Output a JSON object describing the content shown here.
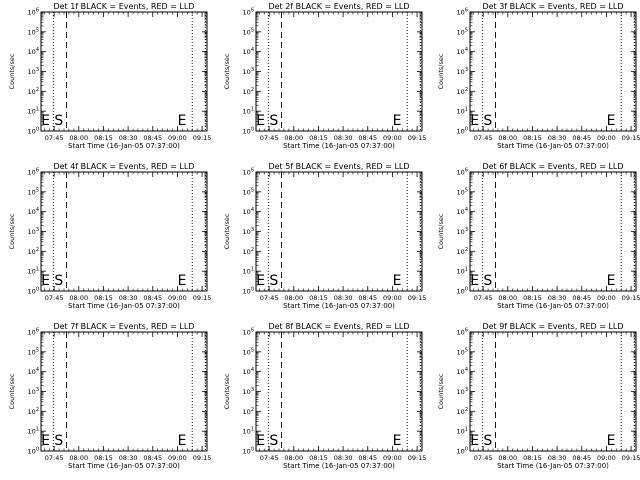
{
  "chart_data": {
    "type": "line",
    "layout": "3x3",
    "ylabel": "Counts/sec",
    "xlabel": "Start Time (16-Jan-05 07:37:00)",
    "x_tick_labels": [
      "07:45",
      "08:00",
      "08:15",
      "08:30",
      "08:45",
      "09:00",
      "09:15"
    ],
    "x_tick_minutes": [
      45,
      60,
      75,
      90,
      105,
      120,
      135
    ],
    "xlim_minutes": [
      37,
      138
    ],
    "y_scale": "log",
    "ylim": [
      1,
      1000000
    ],
    "y_tick_exponents": [
      0,
      1,
      2,
      3,
      4,
      5,
      6
    ],
    "markers": [
      {
        "label": "E",
        "x_minute": 38
      },
      {
        "label": "S",
        "x_minute": 46
      },
      {
        "label": "E",
        "x_minute": 121
      }
    ],
    "vlines": [
      {
        "style": "dotted",
        "x_minute": 44.5
      },
      {
        "style": "dashed",
        "x_minute": 52.5
      },
      {
        "style": "dotted",
        "x_minute": 129
      },
      {
        "style": "dotted",
        "x_minute": 137
      }
    ],
    "panels": [
      {
        "title": "Det 1f BLACK = Events, RED = LLD",
        "series": []
      },
      {
        "title": "Det 2f BLACK = Events, RED = LLD",
        "series": []
      },
      {
        "title": "Det 3f BLACK = Events, RED = LLD",
        "series": []
      },
      {
        "title": "Det 4f BLACK = Events, RED = LLD",
        "series": []
      },
      {
        "title": "Det 5f BLACK = Events, RED = LLD",
        "series": []
      },
      {
        "title": "Det 6f BLACK = Events, RED = LLD",
        "series": []
      },
      {
        "title": "Det 7f BLACK = Events, RED = LLD",
        "series": []
      },
      {
        "title": "Det 8f BLACK = Events, RED = LLD",
        "series": []
      },
      {
        "title": "Det 9f BLACK = Events, RED = LLD",
        "series": []
      }
    ]
  }
}
